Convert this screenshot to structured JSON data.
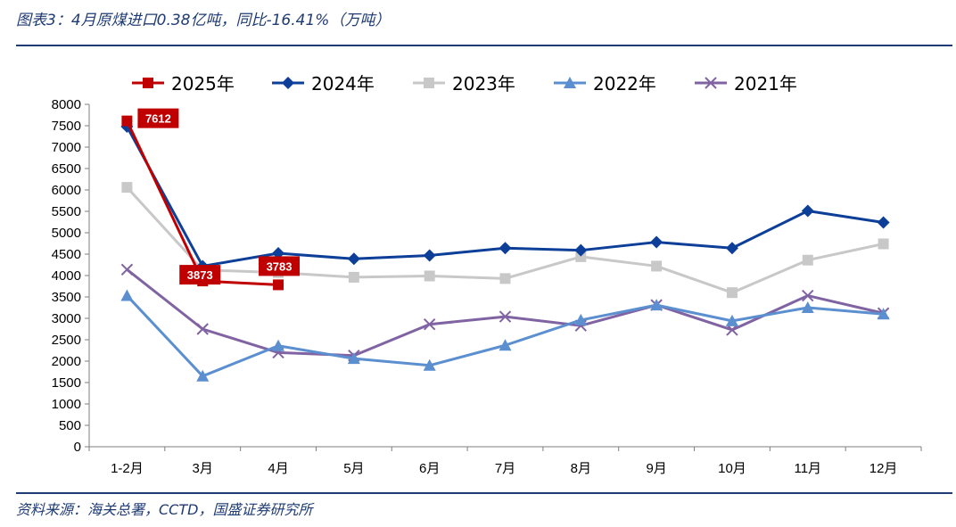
{
  "header": {
    "title": "图表3：4月原煤进口0.38亿吨，同比-16.41%（万吨）"
  },
  "footer": {
    "source": "资料来源：海关总署，CCTD，国盛证券研究所"
  },
  "chart_data": {
    "type": "line",
    "categories": [
      "1-2月",
      "3月",
      "4月",
      "5月",
      "6月",
      "7月",
      "8月",
      "9月",
      "10月",
      "11月",
      "12月"
    ],
    "ylim": [
      0,
      8000
    ],
    "yticks": [
      0,
      500,
      1000,
      1500,
      2000,
      2500,
      3000,
      3500,
      4000,
      4500,
      5000,
      5500,
      6000,
      6500,
      7000,
      7500,
      8000
    ],
    "grid": false,
    "legend_position": "top",
    "series": [
      {
        "name": "2025年",
        "color": "#c00000",
        "marker": "square",
        "values": [
          7612,
          3873,
          3783,
          null,
          null,
          null,
          null,
          null,
          null,
          null,
          null
        ]
      },
      {
        "name": "2024年",
        "color": "#0d3f99",
        "marker": "diamond",
        "values": [
          7480,
          4220,
          4520,
          4390,
          4470,
          4640,
          4590,
          4780,
          4640,
          5510,
          5240
        ]
      },
      {
        "name": "2023年",
        "color": "#c8c8c8",
        "marker": "square",
        "values": [
          6060,
          4130,
          4070,
          3960,
          3990,
          3930,
          4440,
          4220,
          3600,
          4360,
          4740
        ]
      },
      {
        "name": "2022年",
        "color": "#5b8fd0",
        "marker": "triangle",
        "values": [
          3530,
          1650,
          2360,
          2060,
          1900,
          2370,
          2960,
          3310,
          2940,
          3250,
          3100
        ]
      },
      {
        "name": "2021年",
        "color": "#8063a2",
        "marker": "x",
        "values": [
          4140,
          2750,
          2200,
          2130,
          2860,
          3040,
          2830,
          3310,
          2730,
          3530,
          3120
        ]
      }
    ],
    "data_labels": [
      {
        "series": "2025年",
        "index": 0,
        "text": "7612"
      },
      {
        "series": "2025年",
        "index": 1,
        "text": "3873"
      },
      {
        "series": "2025年",
        "index": 2,
        "text": "3783"
      }
    ]
  }
}
